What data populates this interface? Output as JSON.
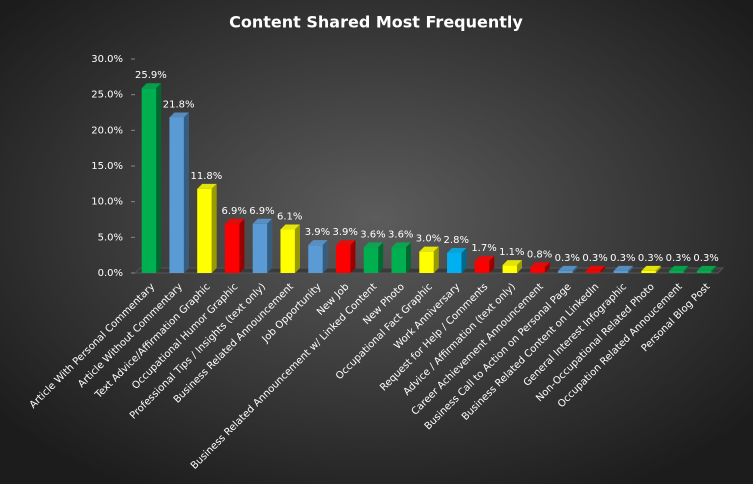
{
  "chart_data": {
    "type": "bar3d",
    "title": "Content Shared Most Frequently",
    "categories": [
      "Article With Personal Commentary",
      "Article Without Commentary",
      "Text Advice/Affirmation Graphic",
      "Occupational Humor Graphic",
      "Professional Tips / Insights (text only)",
      "Business Related Announcement",
      "Job Opportunity",
      "New Job",
      "Business Related Announcement w/ Linked Content",
      "New Photo",
      "Occupational Fact Graphic",
      "Work Anniversary",
      "Request for Help / Comments",
      "Advice / Affirmation (text only)",
      "Career Achievement Announcement",
      "Business Call to Action on Personal Page",
      "Business Related Content on LinkedIn",
      "General Interest Infographic",
      "Non-Occupational Related Photo",
      "Occupation Related Annoucement",
      "Personal Blog Post"
    ],
    "values": [
      25.9,
      21.8,
      11.8,
      6.9,
      6.9,
      6.1,
      3.9,
      3.9,
      3.6,
      3.6,
      3.0,
      2.8,
      1.7,
      1.1,
      0.8,
      0.3,
      0.3,
      0.3,
      0.3,
      0.3,
      0.3
    ],
    "value_labels": [
      "25.9%",
      "21.8%",
      "11.8%",
      "6.9%",
      "6.9%",
      "6.1%",
      "3.9%",
      "3.9%",
      "3.6%",
      "3.6%",
      "3.0%",
      "2.8%",
      "1.7%",
      "1.1%",
      "0.8%",
      "0.3%",
      "0.3%",
      "0.3%",
      "0.3%",
      "0.3%",
      "0.3%"
    ],
    "colors": [
      "#00b050",
      "#5b9bd5",
      "#ffff00",
      "#ff0000",
      "#5b9bd5",
      "#ffff00",
      "#5b9bd5",
      "#ff0000",
      "#00b050",
      "#00b050",
      "#ffff00",
      "#00b0f0",
      "#ff0000",
      "#ffff00",
      "#ff0000",
      "#5b9bd5",
      "#ff0000",
      "#5b9bd5",
      "#ffff00",
      "#00b050",
      "#00b050"
    ],
    "ylim": [
      0,
      30
    ],
    "yticks": [
      {
        "value": 0,
        "label": "0.0%"
      },
      {
        "value": 5,
        "label": "5.0%"
      },
      {
        "value": 10,
        "label": "10.0%"
      },
      {
        "value": 15,
        "label": "15.0%"
      },
      {
        "value": 20,
        "label": "20.0%"
      },
      {
        "value": 25,
        "label": "25.0%"
      },
      {
        "value": 30,
        "label": "30.0%"
      }
    ],
    "grid": false
  }
}
